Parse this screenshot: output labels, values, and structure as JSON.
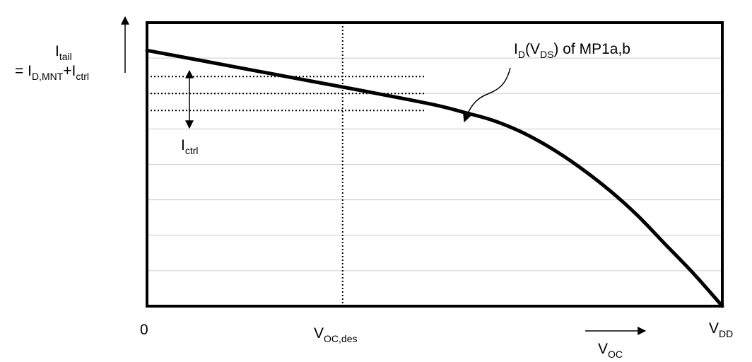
{
  "chart_data": {
    "type": "line",
    "y_axis_label": {
      "line1": {
        "main": "I",
        "sub": "tail"
      },
      "line2": [
        {
          "t": "= I",
          "kind": "main"
        },
        {
          "t": "D,MNT",
          "kind": "sub"
        },
        {
          "t": "+I",
          "kind": "main"
        },
        {
          "t": "ctrl",
          "kind": "sub"
        }
      ]
    },
    "x_ticks": {
      "zero": "0",
      "voc_des": {
        "main": "V",
        "sub": "OC,des",
        "x": 0.34
      },
      "vdd": {
        "main": "V",
        "sub": "DD",
        "x": 1.0
      }
    },
    "x_axis_label": {
      "main": "V",
      "sub": "OC"
    },
    "series": [
      {
        "name": [
          {
            "t": "I",
            "kind": "main"
          },
          {
            "t": "D",
            "kind": "sub"
          },
          {
            "t": "(V",
            "kind": "main"
          },
          {
            "t": "DS",
            "kind": "sub"
          },
          {
            "t": ") of MP1a,b",
            "kind": "main"
          }
        ],
        "x": [
          0,
          0.1,
          0.2,
          0.3,
          0.4,
          0.5,
          0.55,
          0.6,
          0.65,
          0.7,
          0.75,
          0.8,
          0.85,
          0.9,
          0.95,
          1.0
        ],
        "y": [
          0.902,
          0.864,
          0.826,
          0.788,
          0.75,
          0.71,
          0.684,
          0.656,
          0.615,
          0.56,
          0.493,
          0.415,
          0.325,
          0.22,
          0.115,
          0.0
        ]
      }
    ],
    "ctrl_band": {
      "label": {
        "main": "I",
        "sub": "ctrl"
      },
      "levels": [
        0.81,
        0.75,
        0.69
      ],
      "x_end": 0.485
    },
    "xlim": [
      0,
      1
    ],
    "ylim": [
      0,
      1
    ],
    "grid": {
      "y": [
        0.125,
        0.25,
        0.375,
        0.5,
        0.625,
        0.75,
        0.875
      ],
      "color": "#cccccc"
    }
  }
}
